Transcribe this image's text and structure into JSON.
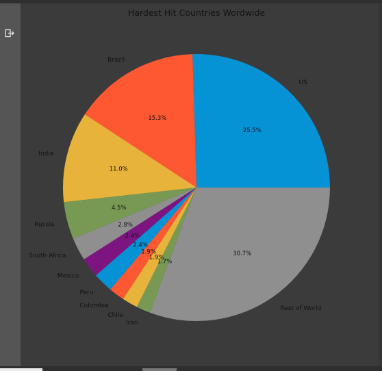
{
  "ui": {
    "exit_icon": "exit-icon"
  },
  "chart_data": {
    "type": "pie",
    "title": "Hardest Hit Countries Wordwide",
    "slices": [
      {
        "label": "US",
        "value": 25.5,
        "pct_label": "25.5%",
        "color": "#0693d6"
      },
      {
        "label": "Brazil",
        "value": 15.3,
        "pct_label": "15.3%",
        "color": "#fd5831"
      },
      {
        "label": "India",
        "value": 11.0,
        "pct_label": "11.0%",
        "color": "#e8b33b"
      },
      {
        "label": "Russia",
        "value": 4.5,
        "pct_label": "4.5%",
        "color": "#779954"
      },
      {
        "label": "South Africa",
        "value": 2.8,
        "pct_label": "2.8%",
        "color": "#8f8f8f"
      },
      {
        "label": "Mexico",
        "value": 2.4,
        "pct_label": "2.4%",
        "color": "#7d1581"
      },
      {
        "label": "Peru",
        "value": 2.4,
        "pct_label": "2.4%",
        "color": "#0693d6"
      },
      {
        "label": "Colombia",
        "value": 1.9,
        "pct_label": "1.9%",
        "color": "#fd5831"
      },
      {
        "label": "Chile",
        "value": 1.9,
        "pct_label": "1.9%",
        "color": "#e8b33b"
      },
      {
        "label": "Iran",
        "value": 1.7,
        "pct_label": "1.7%",
        "color": "#779954"
      },
      {
        "label": "Rest of World",
        "value": 30.7,
        "pct_label": "30.7%",
        "color": "#8f8f8f"
      }
    ],
    "start_angle": 0,
    "direction": "counterclockwise",
    "legend": "none"
  }
}
